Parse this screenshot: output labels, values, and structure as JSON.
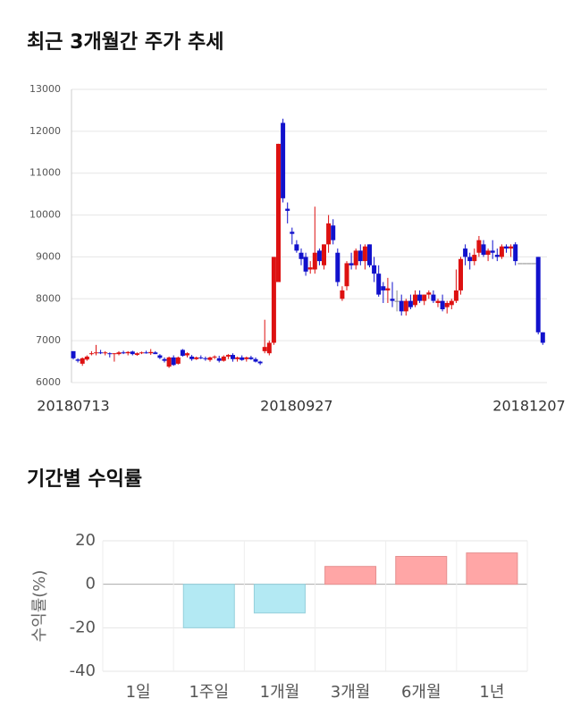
{
  "chart_data": [
    {
      "type": "candlestick",
      "title": "최근 3개월간 주가 추세",
      "categories": [
        "20180713",
        null,
        null,
        null,
        null,
        null,
        null,
        null,
        null,
        null,
        null,
        null,
        null,
        null,
        null,
        null,
        null,
        null,
        null,
        null,
        null,
        null,
        null,
        null,
        null,
        null,
        null,
        null,
        null,
        null,
        null,
        null,
        null,
        null,
        null,
        null,
        null,
        null,
        null,
        null,
        null,
        null,
        null,
        null,
        null,
        null,
        null,
        null,
        null,
        "20180927",
        null,
        null,
        null,
        null,
        null,
        null,
        null,
        null,
        null,
        null,
        null,
        null,
        null,
        null,
        null,
        null,
        null,
        null,
        null,
        null,
        null,
        null,
        null,
        null,
        null,
        null,
        null,
        null,
        null,
        null,
        null,
        null,
        null,
        null,
        null,
        null,
        null,
        null,
        null,
        null,
        null,
        null,
        null,
        null,
        null,
        null,
        null,
        null,
        null,
        null,
        "20181207",
        null,
        null,
        null
      ],
      "ohlc": [
        [
          6750,
          6750,
          6550,
          6580
        ],
        [
          6550,
          6580,
          6480,
          6520
        ],
        [
          6450,
          6600,
          6400,
          6580
        ],
        [
          6550,
          6650,
          6520,
          6620
        ],
        [
          6680,
          6750,
          6650,
          6700
        ],
        [
          6700,
          6900,
          6650,
          6720
        ],
        [
          6720,
          6780,
          6680,
          6700
        ],
        [
          6700,
          6750,
          6650,
          6720
        ],
        [
          6700,
          6720,
          6600,
          6680
        ],
        [
          6680,
          6700,
          6500,
          6700
        ],
        [
          6680,
          6750,
          6650,
          6720
        ],
        [
          6720,
          6760,
          6680,
          6700
        ],
        [
          6700,
          6750,
          6650,
          6730
        ],
        [
          6740,
          6760,
          6650,
          6680
        ],
        [
          6660,
          6720,
          6640,
          6700
        ],
        [
          6700,
          6740,
          6680,
          6720
        ],
        [
          6720,
          6760,
          6690,
          6700
        ],
        [
          6700,
          6800,
          6660,
          6730
        ],
        [
          6720,
          6750,
          6680,
          6680
        ],
        [
          6650,
          6680,
          6560,
          6590
        ],
        [
          6560,
          6600,
          6480,
          6520
        ],
        [
          6380,
          6620,
          6350,
          6600
        ],
        [
          6600,
          6650,
          6400,
          6420
        ],
        [
          6450,
          6620,
          6430,
          6600
        ],
        [
          6780,
          6800,
          6620,
          6640
        ],
        [
          6650,
          6720,
          6600,
          6700
        ],
        [
          6620,
          6660,
          6520,
          6560
        ],
        [
          6560,
          6620,
          6540,
          6600
        ],
        [
          6600,
          6650,
          6560,
          6580
        ],
        [
          6580,
          6620,
          6520,
          6560
        ],
        [
          6540,
          6620,
          6500,
          6600
        ],
        [
          6600,
          6650,
          6560,
          6620
        ],
        [
          6580,
          6640,
          6480,
          6520
        ],
        [
          6520,
          6650,
          6500,
          6620
        ],
        [
          6620,
          6680,
          6560,
          6660
        ],
        [
          6660,
          6700,
          6500,
          6560
        ],
        [
          6560,
          6620,
          6500,
          6600
        ],
        [
          6600,
          6650,
          6520,
          6540
        ],
        [
          6560,
          6620,
          6500,
          6600
        ],
        [
          6600,
          6640,
          6540,
          6560
        ],
        [
          6560,
          6600,
          6480,
          6500
        ],
        [
          6500,
          6520,
          6420,
          6460
        ],
        [
          6750,
          7500,
          6700,
          6850
        ],
        [
          6700,
          7000,
          6650,
          6950
        ],
        [
          6950,
          9000,
          6900,
          9000
        ],
        [
          8400,
          11700,
          8400,
          11700
        ],
        [
          12200,
          12300,
          10300,
          10400
        ],
        [
          10150,
          10300,
          9800,
          10100
        ],
        [
          9600,
          9700,
          9300,
          9550
        ],
        [
          9300,
          9400,
          9100,
          9150
        ],
        [
          9100,
          9200,
          8800,
          8950
        ],
        [
          9000,
          9100,
          8550,
          8650
        ],
        [
          8700,
          8900,
          8600,
          8750
        ],
        [
          8700,
          10200,
          8600,
          9100
        ],
        [
          9150,
          9200,
          8800,
          8900
        ],
        [
          8800,
          9300,
          8700,
          9300
        ],
        [
          9300,
          10000,
          9100,
          9800
        ],
        [
          9750,
          9900,
          9300,
          9400
        ],
        [
          9100,
          9200,
          8300,
          8400
        ],
        [
          8000,
          8300,
          7950,
          8200
        ],
        [
          8300,
          8900,
          8200,
          8850
        ],
        [
          8850,
          9100,
          8700,
          8800
        ],
        [
          8800,
          9200,
          8700,
          9150
        ],
        [
          9150,
          9300,
          8800,
          8900
        ],
        [
          8900,
          9300,
          8700,
          9250
        ],
        [
          9300,
          9300,
          8750,
          8800
        ],
        [
          8800,
          9000,
          8400,
          8600
        ],
        [
          8600,
          8800,
          8050,
          8100
        ],
        [
          8300,
          8400,
          7900,
          8200
        ],
        [
          8200,
          8500,
          7900,
          8250
        ],
        [
          8000,
          8400,
          7800,
          7950
        ],
        [
          7950,
          8200,
          7700,
          7950
        ],
        [
          7950,
          8100,
          7600,
          7700
        ],
        [
          7700,
          8000,
          7600,
          7950
        ],
        [
          7950,
          8100,
          7750,
          7800
        ],
        [
          7850,
          8200,
          7800,
          8100
        ],
        [
          8100,
          8200,
          7900,
          7950
        ],
        [
          7950,
          8100,
          7850,
          8100
        ],
        [
          8100,
          8200,
          8000,
          8150
        ],
        [
          8100,
          8200,
          7900,
          7950
        ],
        [
          7900,
          8000,
          7800,
          7950
        ],
        [
          7950,
          8100,
          7700,
          7750
        ],
        [
          7800,
          7950,
          7650,
          7900
        ],
        [
          7850,
          8000,
          7750,
          7950
        ],
        [
          7950,
          8700,
          7900,
          8200
        ],
        [
          8200,
          9000,
          8100,
          8950
        ],
        [
          9200,
          9300,
          8800,
          9000
        ],
        [
          9000,
          9100,
          8700,
          8900
        ],
        [
          8900,
          9200,
          8800,
          9050
        ],
        [
          9100,
          9500,
          9000,
          9400
        ],
        [
          9300,
          9400,
          9000,
          9050
        ],
        [
          9050,
          9200,
          8900,
          9150
        ],
        [
          9150,
          9400,
          8950,
          9100
        ],
        [
          9050,
          9200,
          8900,
          9000
        ],
        [
          9000,
          9300,
          8950,
          9250
        ],
        [
          9250,
          9300,
          9100,
          9200
        ],
        [
          9200,
          9300,
          9000,
          9250
        ],
        [
          9300,
          9350,
          8800,
          8900
        ],
        [
          8850,
          8850,
          8850,
          8850
        ],
        [
          8850,
          8850,
          8850,
          8850
        ],
        [
          8850,
          8850,
          8850,
          8850
        ],
        [
          8850,
          8850,
          8850,
          8850
        ],
        [
          9000,
          9000,
          7150,
          7200
        ],
        [
          7200,
          7200,
          6900,
          6950
        ]
      ],
      "up_color": "#dd1111",
      "down_color": "#1111cc",
      "flat_color": "#888888",
      "ylim": [
        6000,
        13000
      ],
      "yticks": [
        6000,
        7000,
        8000,
        9000,
        10000,
        11000,
        12000,
        13000
      ],
      "grid": true
    },
    {
      "type": "bar",
      "title": "기간별 수익률",
      "y_label": "수익률(%)",
      "categories": [
        "1일",
        "1주일",
        "1개월",
        "3개월",
        "6개월",
        "1년"
      ],
      "values": [
        0,
        -20,
        -13.2,
        8.2,
        12.8,
        14.4
      ],
      "positive_color": "#ffa6a6",
      "negative_color": "#b3e9f3",
      "ylim": [
        -40,
        20
      ],
      "yticks": [
        -40,
        -20,
        0,
        20
      ],
      "grid": true
    }
  ]
}
